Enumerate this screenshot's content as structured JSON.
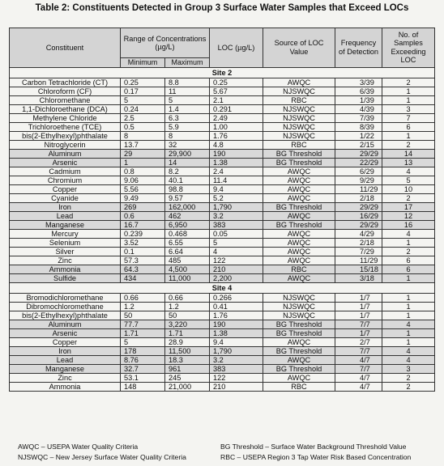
{
  "title": "Table 2: Constituents Detected in Group 3 Surface Water Samples that Exceed LOCs",
  "headers": {
    "constituent": "Constituent",
    "range": "Range of Concentrations (µg/L)",
    "minimum": "Minimum",
    "maximum": "Maximum",
    "loc": "LOC (µg/L)",
    "source": "Source of LOC Value",
    "frequency": "Frequency of Detection",
    "exceeding": "No. of Samples Exceeding LOC"
  },
  "sections": [
    {
      "site": "Site 2",
      "rows": [
        [
          "Carbon Tetrachloride (CT)",
          "0.25",
          "8.8",
          "0.25",
          "AWQC",
          "3/39",
          "2"
        ],
        [
          "Chloroform (CF)",
          "0.17",
          "11",
          "5.67",
          "NJSWQC",
          "6/39",
          "1"
        ],
        [
          "Chloromethane",
          "5",
          "5",
          "2.1",
          "RBC",
          "1/39",
          "1"
        ],
        [
          "1,1-Dichloroethane (DCA)",
          "0.24",
          "1.4",
          "0.291",
          "NJSWQC",
          "4/39",
          "3"
        ],
        [
          "Methylene Chloride",
          "2.5",
          "6.3",
          "2.49",
          "NJSWQC",
          "7/39",
          "7"
        ],
        [
          "Trichloroethene (TCE)",
          "0.5",
          "5.9",
          "1.00",
          "NJSWQC",
          "8/39",
          "6"
        ],
        [
          "bis(2-Ethylhexyl)phthalate",
          "8",
          "8",
          "1.76",
          "NJSWQC",
          "1/22",
          "1"
        ],
        [
          "Nitroglycerin",
          "13.7",
          "32",
          "4.8",
          "RBC",
          "2/15",
          "2"
        ],
        [
          "Aluminum",
          "29",
          "29,900",
          "190",
          "BG Threshold",
          "29/29",
          "14"
        ],
        [
          "Arsenic",
          "1",
          "14",
          "1.38",
          "BG Threshold",
          "22/29",
          "13"
        ],
        [
          "Cadmium",
          "0.8",
          "8.2",
          "2.4",
          "AWQC",
          "6/29",
          "4"
        ],
        [
          "Chromium",
          "9.06",
          "40.1",
          "11.4",
          "AWQC",
          "9/29",
          "5"
        ],
        [
          "Copper",
          "5.56",
          "98.8",
          "9.4",
          "AWQC",
          "11/29",
          "10"
        ],
        [
          "Cyanide",
          "9.49",
          "9.57",
          "5.2",
          "AWQC",
          "2/18",
          "2"
        ],
        [
          "Iron",
          "269",
          "162,000",
          "1,790",
          "BG Threshold",
          "29/29",
          "17"
        ],
        [
          "Lead",
          "0.6",
          "462",
          "3.2",
          "AWQC",
          "16/29",
          "12"
        ],
        [
          "Manganese",
          "16.7",
          "6,950",
          "383",
          "BG Threshold",
          "29/29",
          "16"
        ],
        [
          "Mercury",
          "0.239",
          "0.468",
          "0.05",
          "AWQC",
          "4/29",
          "4"
        ],
        [
          "Selenium",
          "3.52",
          "6.55",
          "5",
          "AWQC",
          "2/18",
          "1"
        ],
        [
          "Silver",
          "0.1",
          "6.64",
          "4",
          "AWQC",
          "7/29",
          "2"
        ],
        [
          "Zinc",
          "57.3",
          "485",
          "122",
          "AWQC",
          "11/29",
          "6"
        ],
        [
          "Ammonia",
          "64.3",
          "4,500",
          "210",
          "RBC",
          "15/18",
          "6"
        ],
        [
          "Sulfide",
          "434",
          "11,000",
          "2,200",
          "AWQC",
          "3/18",
          "1"
        ]
      ]
    },
    {
      "site": "Site 4",
      "rows": [
        [
          "Bromodichloromethane",
          "0.66",
          "0.66",
          "0.266",
          "NJSWQC",
          "1/7",
          "1"
        ],
        [
          "Dibromochloromethane",
          "1.2",
          "1.2",
          "0.41",
          "NJSWQC",
          "1/7",
          "1"
        ],
        [
          "bis(2-Ethylhexyl)phthalate",
          "50",
          "50",
          "1.76",
          "NJSWQC",
          "1/7",
          "1"
        ],
        [
          "Aluminum",
          "77.7",
          "3,220",
          "190",
          "BG Threshold",
          "7/7",
          "4"
        ],
        [
          "Arsenic",
          "1.71",
          "1.71",
          "1.38",
          "BG Threshold",
          "1/7",
          "1"
        ],
        [
          "Copper",
          "5",
          "28.9",
          "9.4",
          "AWQC",
          "2/7",
          "1"
        ],
        [
          "Iron",
          "178",
          "11,500",
          "1,790",
          "BG Threshold",
          "7/7",
          "4"
        ],
        [
          "Lead",
          "8.76",
          "18.3",
          "3.2",
          "AWQC",
          "4/7",
          "4"
        ],
        [
          "Manganese",
          "32.7",
          "961",
          "383",
          "BG Threshold",
          "7/7",
          "3"
        ],
        [
          "Zinc",
          "53.1",
          "245",
          "122",
          "AWQC",
          "4/7",
          "2"
        ],
        [
          "Ammonia",
          "148",
          "21,000",
          "210",
          "RBC",
          "4/7",
          "2"
        ]
      ]
    }
  ],
  "legend": {
    "awqc": "AWQC – USEPA Water Quality Criteria",
    "njswqc": "NJSWQC – New Jersey Surface Water Quality Criteria",
    "bg": "BG Threshold – Surface Water Background Threshold Value",
    "rbc": "RBC – USEPA Region 3 Tap Water Risk Based Concentration"
  }
}
